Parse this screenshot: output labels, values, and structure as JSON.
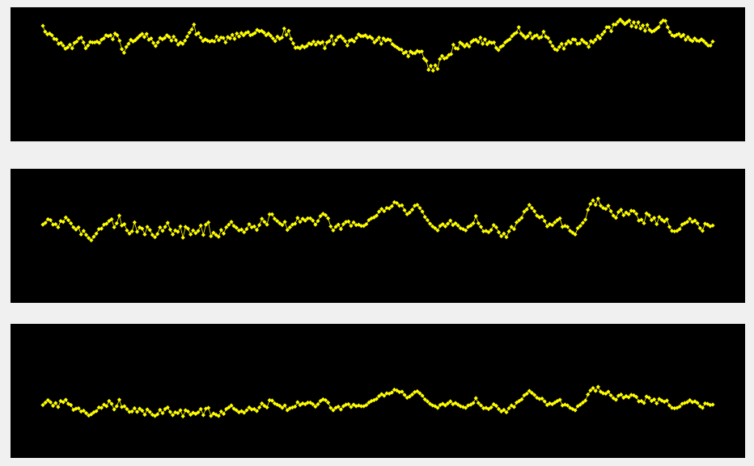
{
  "colors": {
    "background": "#f0f0f0",
    "panel": "#000000",
    "line": "#ffff00",
    "marker": "#ffff00"
  },
  "chart_data": [
    {
      "type": "line",
      "marker": "diamond",
      "grid": false,
      "ylim": [
        -1.6,
        1.1
      ],
      "series": [
        {
          "values": [
            0.83,
            0.7,
            0.64,
            0.66,
            0.62,
            0.54,
            0.53,
            0.43,
            0.45,
            0.39,
            0.32,
            0.35,
            0.41,
            0.33,
            0.45,
            0.48,
            0.55,
            0.57,
            0.46,
            0.33,
            0.39,
            0.47,
            0.46,
            0.46,
            0.48,
            0.45,
            0.52,
            0.55,
            0.62,
            0.6,
            0.62,
            0.53,
            0.66,
            0.62,
            0.5,
            0.31,
            0.23,
            0.36,
            0.43,
            0.52,
            0.48,
            0.51,
            0.56,
            0.61,
            0.65,
            0.58,
            0.65,
            0.52,
            0.55,
            0.45,
            0.38,
            0.46,
            0.56,
            0.53,
            0.56,
            0.62,
            0.58,
            0.5,
            0.59,
            0.51,
            0.41,
            0.46,
            0.43,
            0.5,
            0.59,
            0.68,
            0.75,
            0.86,
            0.64,
            0.67,
            0.57,
            0.49,
            0.53,
            0.5,
            0.48,
            0.5,
            0.48,
            0.59,
            0.51,
            0.57,
            0.56,
            0.46,
            0.58,
            0.55,
            0.63,
            0.54,
            0.66,
            0.59,
            0.67,
            0.62,
            0.67,
            0.69,
            0.62,
            0.64,
            0.67,
            0.74,
            0.71,
            0.72,
            0.68,
            0.62,
            0.66,
            0.61,
            0.55,
            0.49,
            0.59,
            0.54,
            0.57,
            0.77,
            0.63,
            0.72,
            0.54,
            0.44,
            0.34,
            0.35,
            0.33,
            0.38,
            0.35,
            0.38,
            0.44,
            0.42,
            0.48,
            0.41,
            0.47,
            0.44,
            0.47,
            0.33,
            0.46,
            0.49,
            0.6,
            0.42,
            0.51,
            0.58,
            0.6,
            0.55,
            0.49,
            0.39,
            0.5,
            0.52,
            0.48,
            0.56,
            0.64,
            0.6,
            0.6,
            0.62,
            0.57,
            0.59,
            0.55,
            0.46,
            0.51,
            0.57,
            0.43,
            0.55,
            0.5,
            0.53,
            0.51,
            0.42,
            0.38,
            0.35,
            0.31,
            0.3,
            0.22,
            0.25,
            0.15,
            0.26,
            0.22,
            0.22,
            0.27,
            0.25,
            0.26,
            0.1,
            0.05,
            -0.15,
            -0.06,
            -0.17,
            -0.05,
            -0.13,
            0.09,
            0.16,
            0.1,
            0.12,
            0.18,
            0.2,
            0.41,
            0.33,
            0.32,
            0.46,
            0.42,
            0.37,
            0.42,
            0.37,
            0.47,
            0.51,
            0.52,
            0.47,
            0.57,
            0.43,
            0.53,
            0.42,
            0.47,
            0.45,
            0.46,
            0.34,
            0.29,
            0.36,
            0.39,
            0.46,
            0.5,
            0.53,
            0.6,
            0.65,
            0.68,
            0.8,
            0.66,
            0.61,
            0.56,
            0.6,
            0.67,
            0.55,
            0.6,
            0.62,
            0.56,
            0.58,
            0.7,
            0.59,
            0.56,
            0.47,
            0.38,
            0.31,
            0.29,
            0.36,
            0.43,
            0.32,
            0.43,
            0.49,
            0.45,
            0.53,
            0.52,
            0.43,
            0.44,
            0.52,
            0.47,
            0.44,
            0.36,
            0.49,
            0.46,
            0.52,
            0.6,
            0.55,
            0.64,
            0.7,
            0.8,
            0.8,
            0.71,
            0.86,
            0.86,
            0.92,
            0.97,
            0.92,
            0.87,
            0.91,
            0.95,
            0.82,
            0.91,
            0.8,
            0.91,
            0.77,
            0.84,
            0.72,
            0.85,
            0.74,
            0.7,
            0.72,
            0.76,
            0.8,
            0.9,
            0.95,
            0.94,
            0.8,
            0.69,
            0.62,
            0.6,
            0.63,
            0.65,
            0.59,
            0.63,
            0.52,
            0.58,
            0.52,
            0.49,
            0.55,
            0.5,
            0.49,
            0.53,
            0.49,
            0.44,
            0.39,
            0.39,
            0.48
          ]
        }
      ]
    },
    {
      "type": "line",
      "marker": "diamond",
      "grid": false,
      "ylim": [
        -1.5,
        1.2
      ],
      "series": [
        {
          "values": [
            0.1,
            0.14,
            0.22,
            0.2,
            0.1,
            0.11,
            0.04,
            0.18,
            0.16,
            0.26,
            0.2,
            0.13,
            0.04,
            -0.01,
            0.04,
            -0.12,
            -0.04,
            -0.13,
            -0.2,
            -0.25,
            -0.17,
            -0.1,
            0.0,
            0.01,
            0.1,
            0.12,
            0.18,
            0.22,
            0.04,
            0.13,
            0.3,
            0.08,
            0.11,
            -0.03,
            -0.1,
            -0.05,
            0.15,
            -0.06,
            0.04,
            0.01,
            -0.12,
            0.05,
            -0.02,
            -0.13,
            -0.18,
            -0.11,
            0.04,
            -0.04,
            0.05,
            0.14,
            -0.01,
            -0.12,
            -0.03,
            -0.06,
            0.06,
            -0.19,
            0.05,
            0.01,
            -0.12,
            -0.03,
            -0.09,
            -0.04,
            0.08,
            -0.13,
            0.1,
            0.15,
            -0.16,
            -0.08,
            -0.13,
            -0.17,
            -0.02,
            -0.1,
            0.04,
            0.1,
            0.16,
            0.07,
            0.03,
            -0.03,
            -0.01,
            -0.07,
            0.0,
            0.11,
            0.04,
            0.06,
            -0.02,
            0.09,
            0.23,
            0.16,
            0.1,
            0.33,
            0.33,
            0.23,
            0.18,
            0.13,
            0.09,
            0.16,
            -0.02,
            0.04,
            0.1,
            0.12,
            0.25,
            0.16,
            0.23,
            0.19,
            0.24,
            0.24,
            0.19,
            0.1,
            0.18,
            0.29,
            0.34,
            0.31,
            0.24,
            0.06,
            -0.03,
            0.05,
            0.1,
            0.0,
            0.11,
            0.16,
            0.17,
            0.07,
            0.15,
            0.09,
            0.1,
            0.07,
            0.07,
            0.11,
            0.2,
            0.24,
            0.26,
            0.3,
            0.39,
            0.45,
            0.4,
            0.47,
            0.46,
            0.51,
            0.6,
            0.58,
            0.52,
            0.53,
            0.42,
            0.33,
            0.37,
            0.43,
            0.52,
            0.54,
            0.47,
            0.39,
            0.27,
            0.2,
            0.12,
            0.06,
            0.02,
            -0.03,
            0.07,
            0.11,
            0.06,
            0.12,
            0.19,
            0.09,
            0.13,
            0.08,
            0.02,
            0.0,
            -0.03,
            0.05,
            0.08,
            0.13,
            0.29,
            0.13,
            0.05,
            -0.05,
            -0.04,
            -0.07,
            -0.02,
            0.09,
            0.04,
            -0.07,
            -0.16,
            -0.1,
            -0.18,
            -0.05,
            0.05,
            0.0,
            0.15,
            0.2,
            0.25,
            0.39,
            0.44,
            0.54,
            0.47,
            0.4,
            0.3,
            0.26,
            0.28,
            0.18,
            0.06,
            0.11,
            0.09,
            0.15,
            0.2,
            0.24,
            0.05,
            0.07,
            0.05,
            -0.04,
            -0.08,
            -0.12,
            0.02,
            0.07,
            0.14,
            0.21,
            0.43,
            0.56,
            0.64,
            0.54,
            0.68,
            0.52,
            0.47,
            0.45,
            0.52,
            0.4,
            0.3,
            0.25,
            0.38,
            0.43,
            0.31,
            0.37,
            0.33,
            0.41,
            0.4,
            0.34,
            0.19,
            0.21,
            0.13,
            0.35,
            0.31,
            0.2,
            0.25,
            0.11,
            0.27,
            0.21,
            0.17,
            0.22,
            0.05,
            -0.04,
            -0.05,
            -0.04,
            0.0,
            0.1,
            0.13,
            0.16,
            0.23,
            0.16,
            0.19,
            0.13,
            0.02,
            -0.04,
            0.12,
            0.1,
            0.06,
            0.08
          ]
        }
      ]
    },
    {
      "type": "line",
      "marker": "diamond",
      "grid": false,
      "ylim": [
        -1.5,
        1.5
      ],
      "series": [
        {
          "values": [
            -0.35,
            -0.29,
            -0.23,
            -0.28,
            -0.37,
            -0.3,
            -0.4,
            -0.25,
            -0.28,
            -0.22,
            -0.32,
            -0.35,
            -0.47,
            -0.44,
            -0.43,
            -0.51,
            -0.49,
            -0.55,
            -0.61,
            -0.58,
            -0.53,
            -0.5,
            -0.41,
            -0.42,
            -0.34,
            -0.38,
            -0.25,
            -0.32,
            -0.46,
            -0.38,
            -0.22,
            -0.4,
            -0.38,
            -0.45,
            -0.52,
            -0.51,
            -0.43,
            -0.52,
            -0.44,
            -0.49,
            -0.59,
            -0.46,
            -0.52,
            -0.59,
            -0.62,
            -0.58,
            -0.47,
            -0.55,
            -0.45,
            -0.41,
            -0.52,
            -0.6,
            -0.53,
            -0.55,
            -0.48,
            -0.63,
            -0.48,
            -0.51,
            -0.59,
            -0.54,
            -0.57,
            -0.53,
            -0.45,
            -0.6,
            -0.44,
            -0.42,
            -0.62,
            -0.56,
            -0.59,
            -0.62,
            -0.51,
            -0.57,
            -0.45,
            -0.41,
            -0.36,
            -0.44,
            -0.48,
            -0.53,
            -0.5,
            -0.54,
            -0.48,
            -0.41,
            -0.46,
            -0.45,
            -0.5,
            -0.41,
            -0.31,
            -0.37,
            -0.41,
            -0.23,
            -0.24,
            -0.31,
            -0.34,
            -0.37,
            -0.42,
            -0.36,
            -0.48,
            -0.43,
            -0.41,
            -0.39,
            -0.28,
            -0.35,
            -0.31,
            -0.33,
            -0.29,
            -0.29,
            -0.33,
            -0.39,
            -0.33,
            -0.25,
            -0.21,
            -0.23,
            -0.29,
            -0.42,
            -0.48,
            -0.42,
            -0.39,
            -0.46,
            -0.38,
            -0.34,
            -0.33,
            -0.4,
            -0.34,
            -0.38,
            -0.36,
            -0.38,
            -0.38,
            -0.35,
            -0.29,
            -0.25,
            -0.23,
            -0.2,
            -0.13,
            -0.08,
            -0.12,
            -0.06,
            -0.07,
            -0.04,
            0.03,
            0.01,
            -0.03,
            -0.02,
            -0.1,
            -0.17,
            -0.14,
            -0.09,
            -0.03,
            -0.01,
            -0.06,
            -0.12,
            -0.21,
            -0.26,
            -0.32,
            -0.36,
            -0.38,
            -0.42,
            -0.35,
            -0.32,
            -0.36,
            -0.31,
            -0.26,
            -0.33,
            -0.3,
            -0.34,
            -0.38,
            -0.4,
            -0.42,
            -0.36,
            -0.34,
            -0.3,
            -0.18,
            -0.3,
            -0.36,
            -0.43,
            -0.42,
            -0.45,
            -0.41,
            -0.33,
            -0.37,
            -0.45,
            -0.51,
            -0.47,
            -0.53,
            -0.43,
            -0.36,
            -0.4,
            -0.29,
            -0.25,
            -0.21,
            -0.11,
            -0.07,
            0.0,
            -0.05,
            -0.1,
            -0.17,
            -0.2,
            -0.19,
            -0.26,
            -0.35,
            -0.31,
            -0.33,
            -0.29,
            -0.25,
            -0.22,
            -0.36,
            -0.34,
            -0.36,
            -0.42,
            -0.45,
            -0.48,
            -0.38,
            -0.34,
            -0.29,
            -0.24,
            -0.09,
            0.01,
            0.07,
            0.0,
            0.1,
            -0.02,
            -0.06,
            -0.07,
            -0.02,
            -0.11,
            -0.18,
            -0.22,
            -0.12,
            -0.09,
            -0.17,
            -0.13,
            -0.16,
            -0.1,
            -0.11,
            -0.15,
            -0.26,
            -0.25,
            -0.3,
            -0.14,
            -0.17,
            -0.25,
            -0.21,
            -0.31,
            -0.2,
            -0.24,
            -0.27,
            -0.24,
            -0.36,
            -0.42,
            -0.43,
            -0.42,
            -0.39,
            -0.32,
            -0.3,
            -0.28,
            -0.23,
            -0.28,
            -0.26,
            -0.3,
            -0.38,
            -0.42,
            -0.31,
            -0.32,
            -0.35,
            -0.34
          ]
        }
      ]
    }
  ]
}
